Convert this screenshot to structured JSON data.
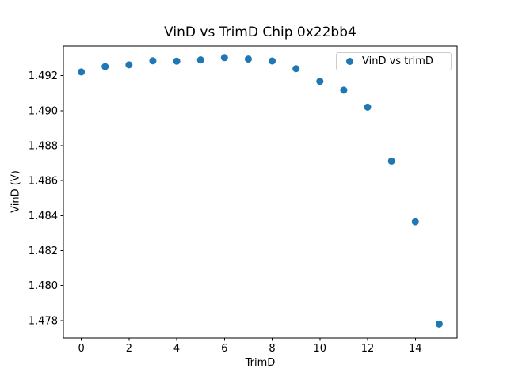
{
  "chart_data": {
    "type": "scatter",
    "title": "VinD vs TrimD Chip 0x22bb4",
    "xlabel": "TrimD",
    "ylabel": "VinD (V)",
    "legend_label": "VinD vs trimD",
    "legend_position": "upper right",
    "marker": {
      "shape": "circle",
      "color": "#1f77b4",
      "radius_px": 4.5
    },
    "x": [
      0,
      1,
      2,
      3,
      4,
      5,
      6,
      7,
      8,
      9,
      10,
      11,
      12,
      13,
      14,
      15
    ],
    "y": [
      1.49221,
      1.49252,
      1.49262,
      1.49285,
      1.49283,
      1.4929,
      1.49303,
      1.49295,
      1.49284,
      1.4924,
      1.49168,
      1.49117,
      1.4902,
      1.48712,
      1.48365,
      1.4778
    ],
    "xlim": [
      -0.75,
      15.75
    ],
    "ylim": [
      1.477,
      1.4937
    ],
    "xticks": [
      0,
      2,
      4,
      6,
      8,
      10,
      12,
      14
    ],
    "yticks": [
      1.478,
      1.48,
      1.482,
      1.484,
      1.486,
      1.488,
      1.49,
      1.492
    ],
    "ytick_decimals": 3,
    "grid": false,
    "axis_color": "#000000",
    "text_color": "#000000",
    "background": "#ffffff"
  }
}
